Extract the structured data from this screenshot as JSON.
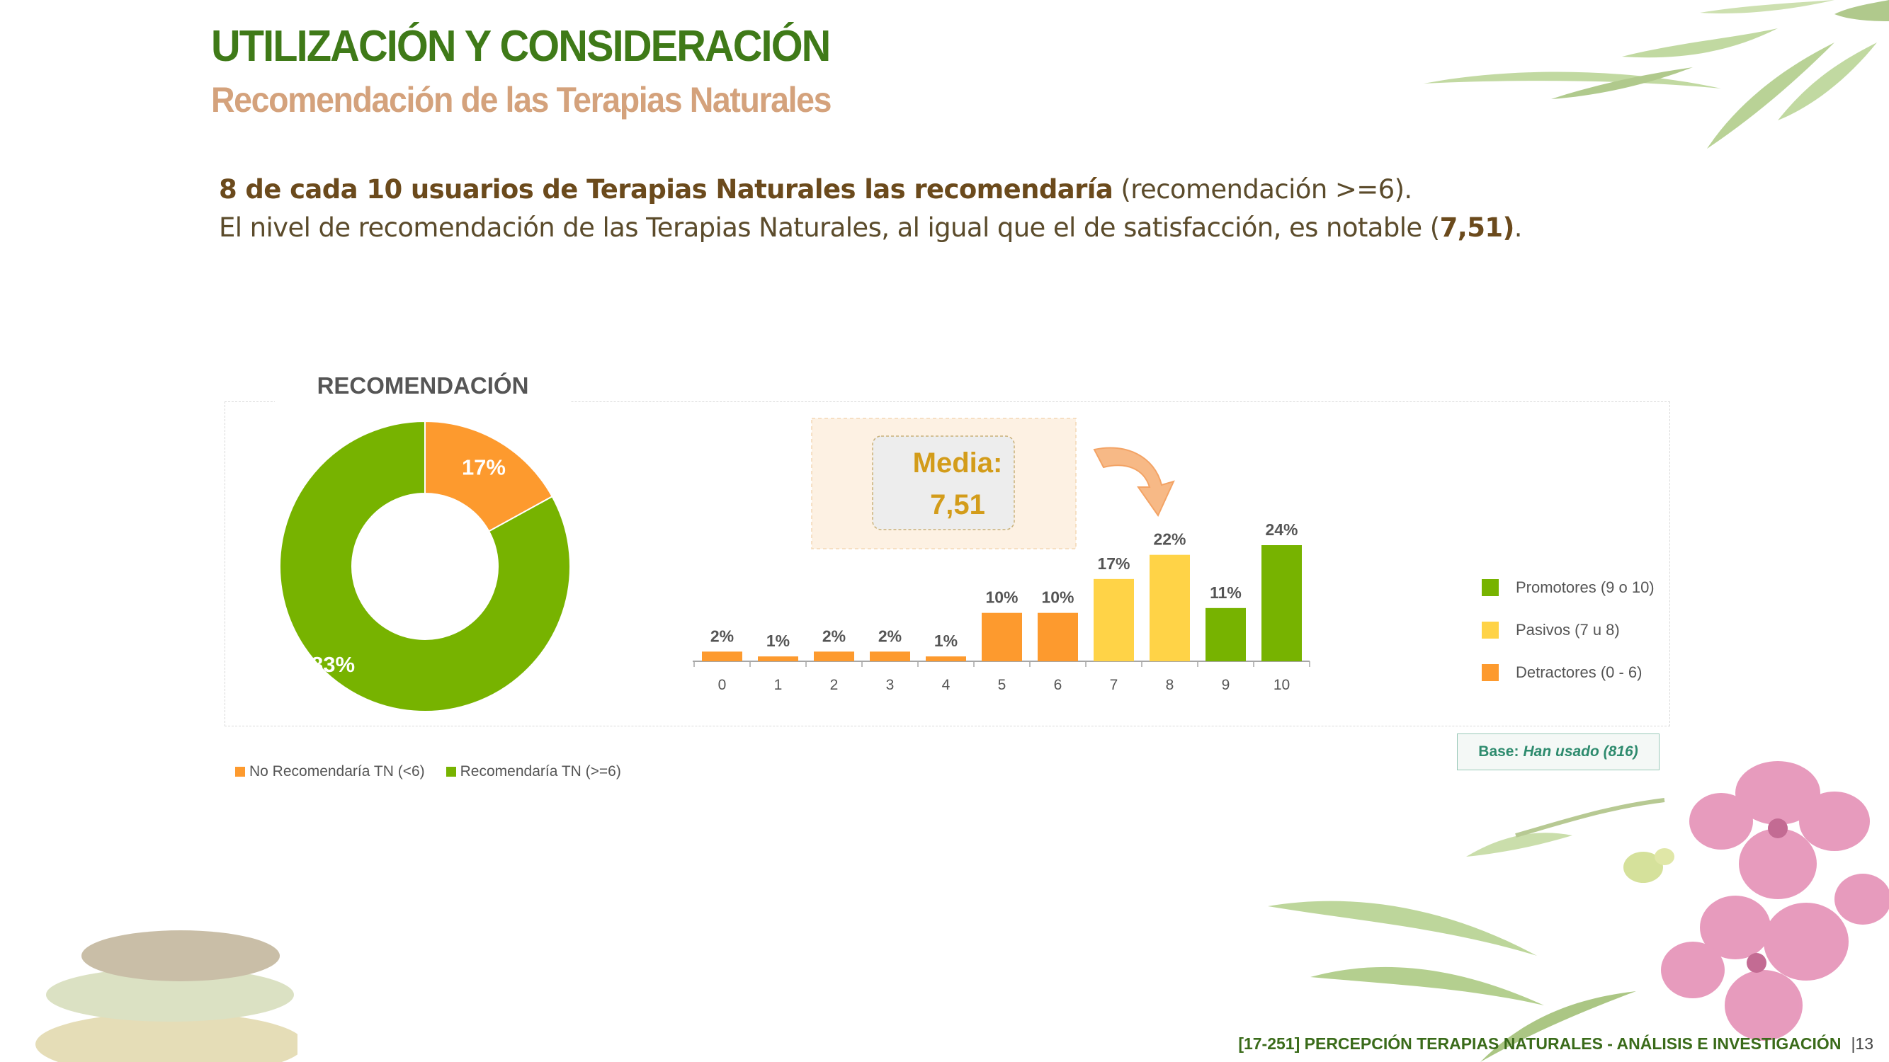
{
  "header": {
    "title": "UTILIZACIÓN Y CONSIDERACIÓN",
    "subtitle": "Recomendación de las Terapias Naturales"
  },
  "intro": {
    "line1_bold": "8 de cada 10 usuarios de Terapias Naturales las recomendaría",
    "line1_rest": " (recomendación >=6).",
    "line2_pre": "El nivel de recomendación de las Terapias Naturales, al igual que el de satisfacción, es notable (",
    "line2_bold": "7,51)",
    "line2_post": "."
  },
  "media": {
    "label": "Media:",
    "value": "7,51"
  },
  "base": {
    "label": "Base:",
    "value": "Han usado (816)"
  },
  "footer": {
    "text": "[17-251] PERCEPCIÓN TERAPIAS NATURALES - ANÁLISIS E INVESTIGACIÓN",
    "page": "|13"
  },
  "colors": {
    "green": "#77b300",
    "orange": "#fd9a2e",
    "yellow": "#ffd347",
    "title_green": "#3f7a18",
    "subtitle_tan": "#d4a27c"
  },
  "chart_data": [
    {
      "type": "pie",
      "variant": "donut",
      "title": "RECOMENDACIÓN",
      "slices": [
        {
          "name": "No Recomendaría TN (<6)",
          "value": 17,
          "label": "17%",
          "color": "#fd9a2e"
        },
        {
          "name": "Recomendaría TN (>=6)",
          "value": 83,
          "label": "83%",
          "color": "#77b300"
        }
      ],
      "legend_position": "bottom"
    },
    {
      "type": "bar",
      "categories": [
        "0",
        "1",
        "2",
        "3",
        "4",
        "5",
        "6",
        "7",
        "8",
        "9",
        "10"
      ],
      "values": [
        2,
        1,
        2,
        2,
        1,
        10,
        10,
        17,
        22,
        11,
        24
      ],
      "value_labels": [
        "2%",
        "1%",
        "2%",
        "2%",
        "1%",
        "10%",
        "10%",
        "17%",
        "22%",
        "11%",
        "24%"
      ],
      "groups": [
        "Detractores (0 - 6)",
        "Detractores (0 - 6)",
        "Detractores (0 - 6)",
        "Detractores (0 - 6)",
        "Detractores (0 - 6)",
        "Detractores (0 - 6)",
        "Detractores (0 - 6)",
        "Pasivos (7 u 8)",
        "Pasivos (7 u 8)",
        "Promotores (9 o 10)",
        "Promotores (9 o 10)"
      ],
      "legend": [
        {
          "name": "Promotores (9 o 10)",
          "color": "#77b300"
        },
        {
          "name": "Pasivos (7 u 8)",
          "color": "#ffd347"
        },
        {
          "name": "Detractores (0 - 6)",
          "color": "#fd9a2e"
        }
      ],
      "ylim": [
        0,
        24
      ],
      "grid": false,
      "legend_position": "right"
    }
  ]
}
